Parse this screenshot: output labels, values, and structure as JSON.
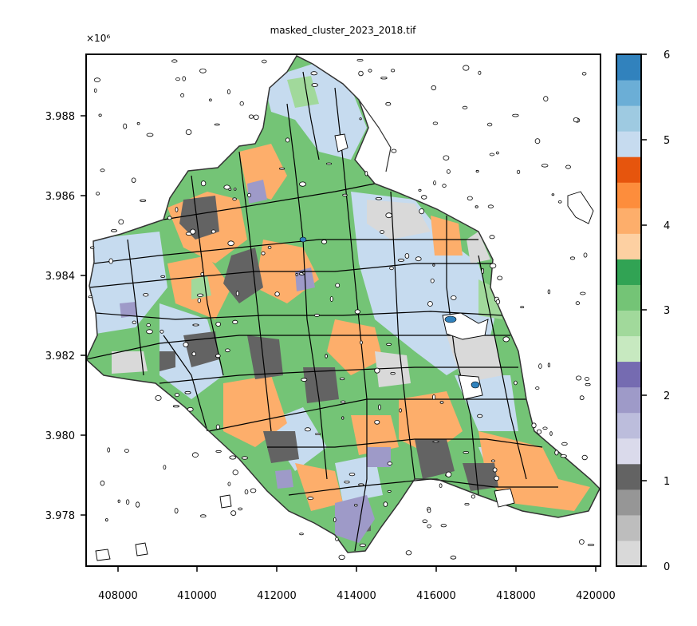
{
  "title": "masked_cluster_2023_2018.tif",
  "x_multiplier_label": "×10⁶",
  "chart_data": {
    "type": "heatmap",
    "title": "masked_cluster_2023_2018.tif",
    "x_ticks": [
      "408000",
      "410000",
      "412000",
      "414000",
      "416000",
      "418000",
      "420000"
    ],
    "y_ticks": [
      "3.988",
      "3.986",
      "3.984",
      "3.982",
      "3.980",
      "3.978"
    ],
    "y_offset_label": "×10⁶",
    "xlim": [
      407200,
      420100
    ],
    "ylim": [
      3976700,
      3989550
    ],
    "colorbar": {
      "ticks": [
        "0",
        "1",
        "2",
        "3",
        "4",
        "5",
        "6"
      ],
      "range": [
        0,
        6
      ],
      "colors": [
        "#d9d9d9",
        "#bdbdbd",
        "#969696",
        "#636363",
        "#dadaeb",
        "#bcbddc",
        "#9e9ac8",
        "#756bb1",
        "#c7e9c0",
        "#a1d99b",
        "#74c476",
        "#31a354",
        "#fdd0a2",
        "#fdae6b",
        "#fd8d3c",
        "#e6550d",
        "#c6dbef",
        "#9ecae1",
        "#6baed6",
        "#3182bd"
      ]
    },
    "dominant_classes": [
      "light-blue",
      "green",
      "orange",
      "dark-gray",
      "purple",
      "light-gray"
    ]
  },
  "palette": {
    "light_blue": "#c6dbef",
    "green": "#74c476",
    "light_green": "#a1d99b",
    "orange": "#fdae6b",
    "dark_gray": "#636363",
    "purple": "#9e9ac8",
    "light_gray": "#d9d9d9",
    "boundary": "#000000"
  }
}
